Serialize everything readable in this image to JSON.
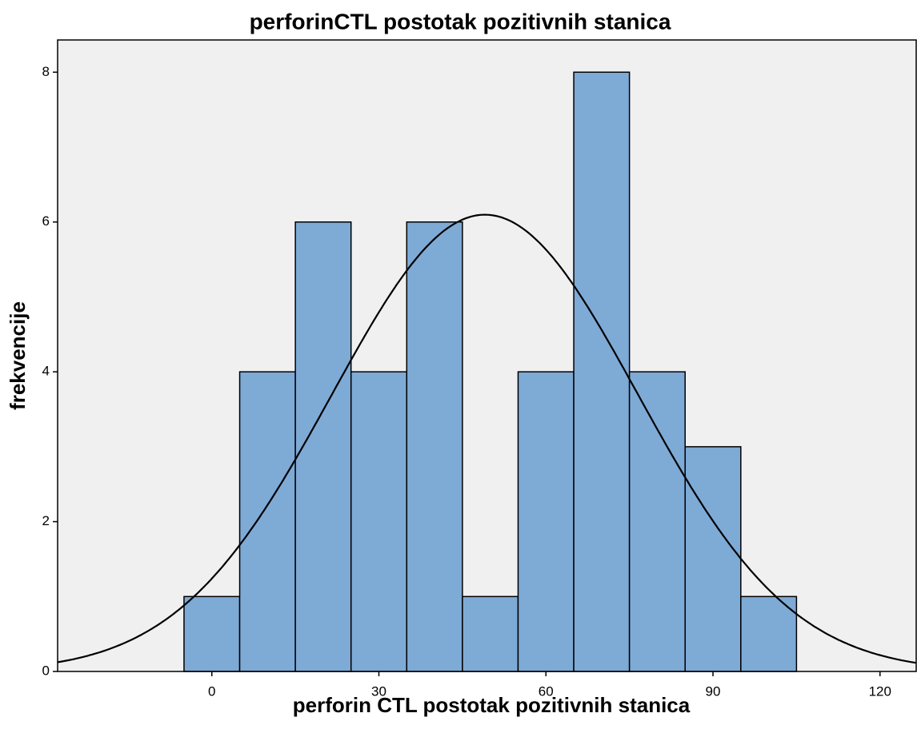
{
  "chart_data": {
    "type": "histogram",
    "title": "perforinCTL postotak pozitivnih stanica",
    "x_label": "perforin CTL postotak pozitivnih stanica",
    "y_label": "frekvencije",
    "bins": [
      -5,
      5,
      15,
      25,
      35,
      45,
      55,
      65,
      75,
      85,
      95,
      105
    ],
    "values": [
      1,
      4,
      6,
      4,
      6,
      1,
      4,
      8,
      4,
      3,
      1
    ],
    "color": "#7eaad6",
    "background": "#f0f0f0",
    "normal_curve": true,
    "xlim": [
      -27.7,
      126.5
    ],
    "xticks": [
      0,
      30,
      60,
      90,
      120
    ],
    "ylim": [
      0,
      8.43
    ],
    "yticks": [
      0,
      2,
      4,
      6,
      8
    ]
  }
}
